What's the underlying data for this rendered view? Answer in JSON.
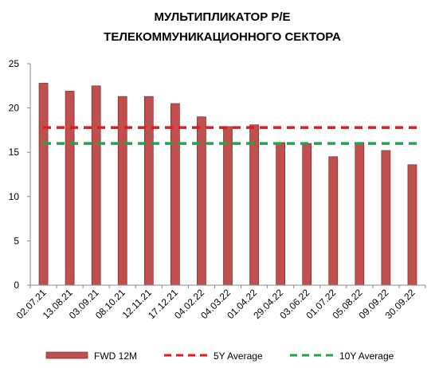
{
  "chart_data": {
    "type": "bar",
    "title_lines": [
      "МУЛЬТИПЛИКАТОР P/E",
      "ТЕЛЕКОММУНИКАЦИОННОГО СЕКТОРА"
    ],
    "categories": [
      "02.07.21",
      "13.08.21",
      "03.09.21",
      "08.10.21",
      "12.11.21",
      "17.12.21",
      "04.02.22",
      "04.03.22",
      "01.04.22",
      "29.04.22",
      "03.06.22",
      "01.07.22",
      "05.08.22",
      "09.09.22",
      "30.09.22"
    ],
    "series": [
      {
        "name": "FWD 12M",
        "values": [
          22.8,
          21.9,
          22.5,
          21.3,
          21.3,
          20.5,
          19.0,
          17.9,
          18.1,
          16.1,
          16.0,
          14.5,
          16.1,
          15.2,
          13.6
        ],
        "color": "#c0504d"
      }
    ],
    "reference_lines": [
      {
        "name": "5Y Average",
        "value": 17.8,
        "color": "#e31a1c",
        "style": "dashed"
      },
      {
        "name": "10Y Average",
        "value": 16.0,
        "color": "#1fa64a",
        "style": "dashed"
      }
    ],
    "yticks": [
      "0",
      "5",
      "10",
      "15",
      "20",
      "25"
    ],
    "ylim": [
      0,
      25
    ],
    "legend_position": "bottom",
    "grid": false
  }
}
